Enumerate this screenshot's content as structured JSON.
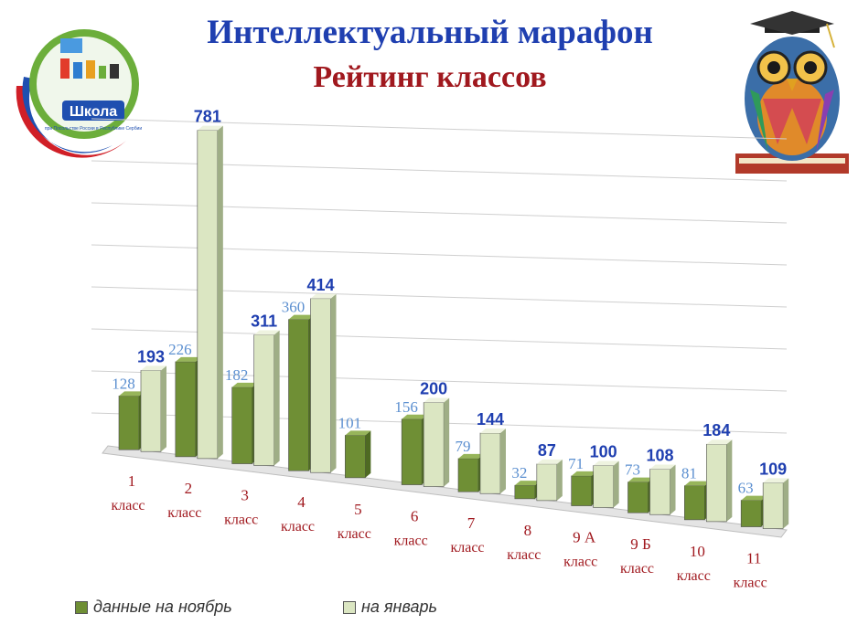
{
  "header": {
    "title": "Интеллектуальный марафон",
    "subtitle": "Рейтинг классов"
  },
  "logo": {
    "text": "Школа",
    "small_text": "при Посольстве России в Республике Сербии"
  },
  "owl_icon": "owl-with-graduation-cap-illustration",
  "colors": {
    "title": "#1f3fb0",
    "subtitle": "#a0181e",
    "series_november": "#6f8f35",
    "series_january": "#dbe6c2",
    "label_november": "#5b8fd0",
    "label_january": "#1f3fb0",
    "category_label": "#a0181e"
  },
  "chart_data": {
    "type": "bar",
    "categories": [
      [
        "1",
        "класс"
      ],
      [
        "2",
        "класс"
      ],
      [
        "3",
        "класс"
      ],
      [
        "4",
        "класс"
      ],
      [
        "5",
        "класс"
      ],
      [
        "6",
        "класс"
      ],
      [
        "7",
        "класс"
      ],
      [
        "8",
        "класс"
      ],
      [
        "9 А",
        "класс"
      ],
      [
        "9 Б",
        "класс"
      ],
      [
        "10",
        "класс"
      ],
      [
        "11",
        "класс"
      ]
    ],
    "series": [
      {
        "name": "данные на ноябрь",
        "values": [
          128,
          226,
          182,
          360,
          101,
          156,
          79,
          32,
          71,
          73,
          81,
          63
        ]
      },
      {
        "name": "на январь",
        "values": [
          193,
          781,
          311,
          414,
          null,
          200,
          144,
          87,
          100,
          108,
          184,
          109
        ]
      }
    ],
    "ylim": [
      0,
      800
    ],
    "grid": true,
    "legend_position": "bottom-left"
  }
}
